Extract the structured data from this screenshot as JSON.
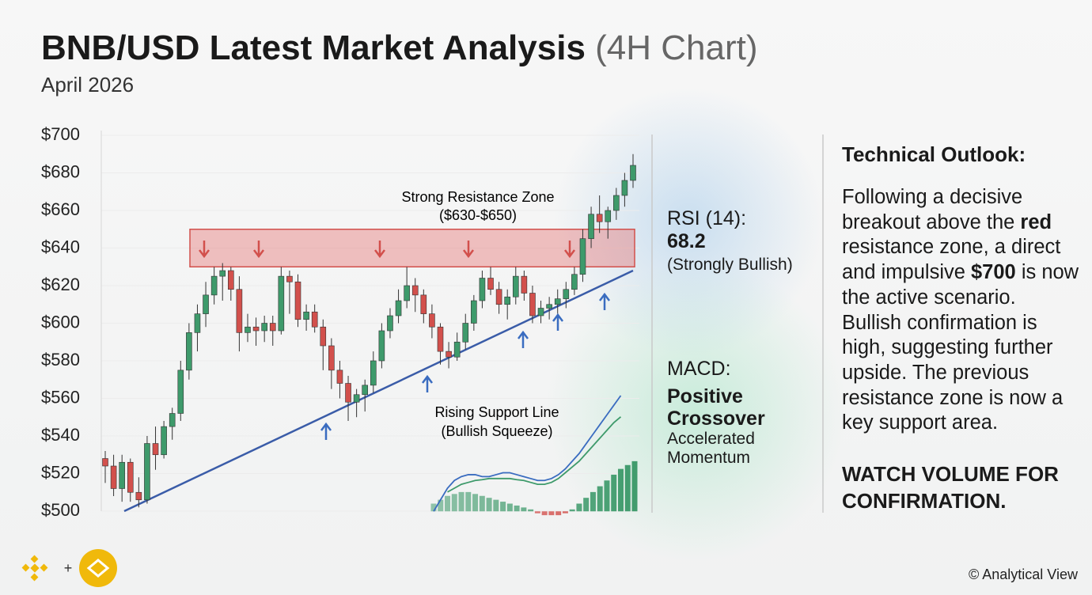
{
  "header": {
    "title": "BNB/USD Latest Market Analysis",
    "title_suffix": "(4H Chart)",
    "subtitle": "April 2026"
  },
  "chart_data": {
    "type": "candlestick",
    "open": [
      528,
      524,
      512,
      526,
      510,
      506,
      536,
      530,
      545,
      552,
      575,
      595,
      605,
      615,
      625,
      628,
      618,
      595,
      598,
      596,
      600,
      596,
      625,
      622,
      602,
      606,
      598,
      588,
      575,
      568,
      558,
      562,
      567,
      580,
      596,
      604,
      612,
      620,
      615,
      605,
      598,
      585,
      582,
      590,
      600,
      612,
      624,
      618,
      610,
      614,
      625,
      616,
      604,
      608,
      610,
      613,
      618,
      626,
      645,
      658,
      654,
      660,
      668,
      676
    ],
    "high": [
      532,
      530,
      530,
      528,
      518,
      540,
      545,
      548,
      555,
      580,
      600,
      610,
      622,
      630,
      632,
      630,
      625,
      605,
      603,
      604,
      604,
      630,
      628,
      626,
      610,
      610,
      602,
      592,
      580,
      572,
      565,
      570,
      585,
      600,
      608,
      618,
      630,
      624,
      618,
      610,
      600,
      590,
      595,
      605,
      615,
      628,
      630,
      622,
      618,
      630,
      628,
      620,
      612,
      614,
      618,
      622,
      630,
      650,
      662,
      668,
      662,
      672,
      680,
      690
    ],
    "low": [
      515,
      508,
      505,
      505,
      502,
      504,
      522,
      528,
      538,
      548,
      570,
      585,
      598,
      610,
      612,
      612,
      585,
      590,
      588,
      590,
      588,
      594,
      605,
      598,
      596,
      595,
      575,
      565,
      560,
      548,
      550,
      553,
      563,
      576,
      592,
      600,
      608,
      606,
      600,
      592,
      578,
      576,
      580,
      586,
      596,
      608,
      615,
      605,
      602,
      610,
      612,
      600,
      600,
      602,
      605,
      608,
      615,
      622,
      640,
      648,
      645,
      655,
      662,
      672
    ],
    "close": [
      524,
      512,
      526,
      510,
      506,
      536,
      530,
      545,
      552,
      575,
      595,
      605,
      615,
      625,
      628,
      618,
      595,
      598,
      596,
      600,
      596,
      625,
      622,
      602,
      606,
      598,
      588,
      575,
      568,
      558,
      562,
      567,
      580,
      596,
      604,
      612,
      620,
      615,
      605,
      598,
      585,
      582,
      590,
      600,
      612,
      624,
      618,
      610,
      614,
      625,
      616,
      604,
      608,
      610,
      613,
      618,
      626,
      645,
      658,
      654,
      660,
      668,
      676,
      684
    ],
    "up_color": "#3e9a6b",
    "down_color": "#d2504c",
    "ylim": [
      500,
      700
    ],
    "yticks": [
      {
        "value": 500,
        "label": "$500"
      },
      {
        "value": 520,
        "label": "$520"
      },
      {
        "value": 540,
        "label": "$540"
      },
      {
        "value": 560,
        "label": "$560"
      },
      {
        "value": 580,
        "label": "$580"
      },
      {
        "value": 600,
        "label": "$600"
      },
      {
        "value": 620,
        "label": "$620"
      },
      {
        "value": 640,
        "label": "$640"
      },
      {
        "value": 660,
        "label": "$660"
      },
      {
        "value": 680,
        "label": "$680"
      },
      {
        "value": 700,
        "label": "$700"
      }
    ],
    "grid": true,
    "resistance_zone": [
      630,
      650
    ],
    "resistance_label": "Strong Resistance Zone",
    "resistance_range": "($630-$650)",
    "support_line": [
      500,
      628
    ],
    "support_label": "Rising Support Line",
    "support_note": "(Bullish Squeeze)",
    "macd": {
      "ylim": [
        -2,
        30
      ],
      "histogram": [
        2,
        3,
        4,
        4.5,
        5,
        5,
        4.5,
        4,
        3.5,
        3,
        2.5,
        2,
        1.5,
        1,
        0.5,
        -0.5,
        -1,
        -1,
        -1,
        -0.5,
        0.5,
        2,
        3.5,
        5,
        6.5,
        8,
        9.5,
        11,
        12,
        13
      ],
      "macd_line": [
        0,
        3,
        6,
        8,
        9,
        9.5,
        9.5,
        9,
        9,
        9.5,
        10,
        10,
        9.5,
        9,
        8.5,
        8,
        8,
        8.5,
        9.5,
        11,
        13,
        15,
        17.5,
        20,
        22.5,
        25,
        27.5,
        30,
        null,
        null
      ],
      "signal_line": [
        null,
        null,
        5,
        6,
        7,
        7.5,
        8,
        8.2,
        8.5,
        8.5,
        8.5,
        8.5,
        8.2,
        8,
        7.5,
        7,
        7,
        7.5,
        8.5,
        10,
        11.5,
        13,
        15,
        17,
        19,
        21,
        23,
        24.5,
        null,
        null
      ],
      "histogram_color": "#3e9a6b",
      "negative_color": "#d2504c",
      "macd_color": "#3a6cc0",
      "signal_color": "#3e9a6b"
    }
  },
  "rsi": {
    "label": "RSI (14):",
    "value": "68.2",
    "note": "(Strongly Bullish)"
  },
  "macd_panel": {
    "label": "MACD:",
    "state_1": "Positive",
    "state_2": "Crossover",
    "note_1": "Accelerated",
    "note_2": "Momentum"
  },
  "outlook": {
    "title": "Technical Outlook:",
    "parts": [
      {
        "text": "Following a decisive breakout above the ",
        "bold": false
      },
      {
        "text": "red",
        "bold": true
      },
      {
        "text": " resistance zone, a direct and impulsive ",
        "bold": false
      },
      {
        "text": "$700",
        "bold": true
      },
      {
        "text": " is now the active scenario. Bullish confirmation is high, suggesting further upside. The previous resistance zone is now a key support area.",
        "bold": false
      }
    ],
    "callout": "WATCH VOLUME FOR CONFIRMATION."
  },
  "footer": {
    "credit": "© Analytical View"
  }
}
